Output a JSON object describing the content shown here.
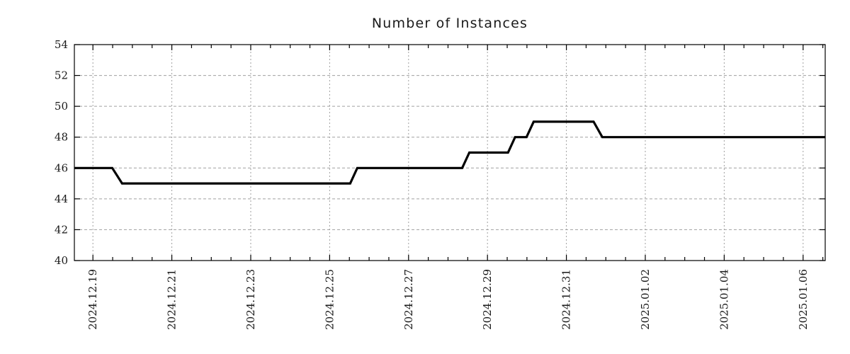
{
  "chart_data": {
    "type": "line",
    "subtype": "step",
    "title": "Number of Instances",
    "background_color": "#ffffff",
    "plot_border_color": "#000000",
    "grid_color": "#a0a0a0",
    "text_color": "#1a1a1a",
    "line_color": "#000000",
    "line_width": 3.2,
    "legend": "none",
    "x_axis": {
      "unit": "days since 2024-12-19 00:00",
      "xlim": [
        -0.47,
        18.56
      ],
      "minor_tick_interval": 0.5,
      "label_rotation_deg": -90,
      "major_ticks": [
        {
          "t": 0,
          "label": "2024.12.19"
        },
        {
          "t": 2,
          "label": "2024.12.21"
        },
        {
          "t": 4,
          "label": "2024.12.23"
        },
        {
          "t": 6,
          "label": "2024.12.25"
        },
        {
          "t": 8,
          "label": "2024.12.27"
        },
        {
          "t": 10,
          "label": "2024.12.29"
        },
        {
          "t": 12,
          "label": "2024.12.31"
        },
        {
          "t": 14,
          "label": "2025.01.02"
        },
        {
          "t": 16,
          "label": "2025.01.04"
        },
        {
          "t": 18,
          "label": "2025.01.06"
        }
      ]
    },
    "y_axis": {
      "ylim": [
        40,
        54
      ],
      "tick_interval": 2,
      "tick_labels": [
        "40",
        "42",
        "44",
        "46",
        "48",
        "50",
        "52",
        "54"
      ]
    },
    "grid": {
      "horizontal_style": "dashed",
      "vertical_style": "dotted"
    },
    "series": [
      {
        "name": "Number of Instances",
        "color": "#000000",
        "points": [
          [
            -0.47,
            46
          ],
          [
            0.49,
            46
          ],
          [
            0.74,
            45
          ],
          [
            6.52,
            45
          ],
          [
            6.7,
            46
          ],
          [
            9.36,
            46
          ],
          [
            9.54,
            47
          ],
          [
            10.52,
            47
          ],
          [
            10.7,
            48
          ],
          [
            10.99,
            48
          ],
          [
            11.17,
            49
          ],
          [
            12.69,
            49
          ],
          [
            12.91,
            48
          ],
          [
            18.56,
            48
          ]
        ]
      }
    ]
  }
}
